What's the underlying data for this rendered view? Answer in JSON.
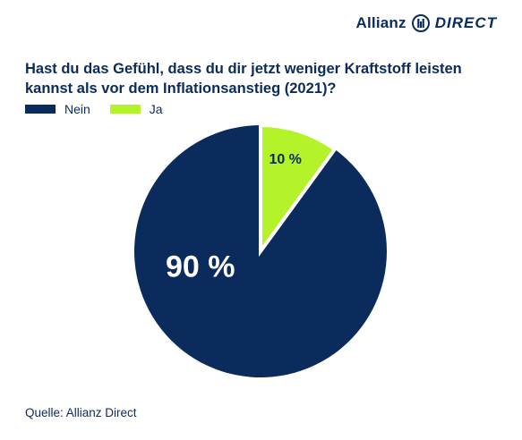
{
  "brand": {
    "name": "Allianz",
    "suffix": "DIRECT"
  },
  "colors": {
    "nein": "#0a2b5c",
    "ja": "#b4f22a",
    "text": "#0a2b5c"
  },
  "chart_data": {
    "type": "pie",
    "title": "Hast du das Gefühl, dass du dir jetzt weniger Kraftstoff leisten kannst als vor dem Inflationsanstieg (2021)?",
    "legend_position": "top-left",
    "slices": [
      {
        "label": "Nein",
        "value": 90,
        "display": "90 %",
        "color": "#0a2b5c"
      },
      {
        "label": "Ja",
        "value": 10,
        "display": "10 %",
        "color": "#b4f22a"
      }
    ]
  },
  "legend": [
    {
      "label": "Nein",
      "color": "#0a2b5c"
    },
    {
      "label": "Ja",
      "color": "#b4f22a"
    }
  ],
  "source": "Quelle: Allianz Direct"
}
